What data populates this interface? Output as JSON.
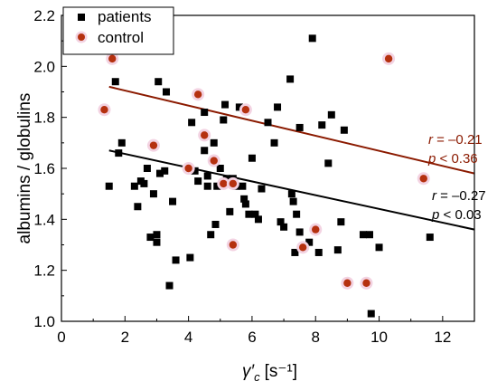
{
  "chart_data": {
    "type": "scatter",
    "title": "",
    "xlabel": "γ′",
    "xlabel_sub": "c",
    "xlabel_units": "[s⁻¹]",
    "ylabel": "albumins / globulins",
    "xlim": [
      0,
      13
    ],
    "ylim": [
      1.0,
      2.2
    ],
    "x_ticks": [
      "0",
      "2",
      "4",
      "6",
      "8",
      "10",
      "12"
    ],
    "y_ticks": [
      "1.0",
      "1.2",
      "1.4",
      "1.6",
      "1.8",
      "2.0",
      "2.2"
    ],
    "grid": false,
    "legend_position": "top-left",
    "series": [
      {
        "name": "patients",
        "marker": "square",
        "color": "#000000",
        "points": [
          [
            1.5,
            1.53
          ],
          [
            1.7,
            1.94
          ],
          [
            1.8,
            1.66
          ],
          [
            1.9,
            1.7
          ],
          [
            2.3,
            1.53
          ],
          [
            2.4,
            1.45
          ],
          [
            2.5,
            1.55
          ],
          [
            2.6,
            1.54
          ],
          [
            2.7,
            1.6
          ],
          [
            2.8,
            1.33
          ],
          [
            2.9,
            1.5
          ],
          [
            3.0,
            1.31
          ],
          [
            3.0,
            1.34
          ],
          [
            3.05,
            1.94
          ],
          [
            3.1,
            1.58
          ],
          [
            3.25,
            1.59
          ],
          [
            3.3,
            1.9
          ],
          [
            3.4,
            1.14
          ],
          [
            3.5,
            1.47
          ],
          [
            3.6,
            1.24
          ],
          [
            4.05,
            1.25
          ],
          [
            4.1,
            1.78
          ],
          [
            4.2,
            1.59
          ],
          [
            4.3,
            1.55
          ],
          [
            4.5,
            1.67
          ],
          [
            4.5,
            1.82
          ],
          [
            4.6,
            1.53
          ],
          [
            4.6,
            1.57
          ],
          [
            4.7,
            1.34
          ],
          [
            4.8,
            1.7
          ],
          [
            4.85,
            1.38
          ],
          [
            4.9,
            1.53
          ],
          [
            5.0,
            1.6
          ],
          [
            5.1,
            1.79
          ],
          [
            5.15,
            1.85
          ],
          [
            5.2,
            1.56
          ],
          [
            5.3,
            1.43
          ],
          [
            5.4,
            1.56
          ],
          [
            5.5,
            1.53
          ],
          [
            5.6,
            1.84
          ],
          [
            5.7,
            1.53
          ],
          [
            5.75,
            1.48
          ],
          [
            5.8,
            1.46
          ],
          [
            5.9,
            1.42
          ],
          [
            6.0,
            1.64
          ],
          [
            6.1,
            1.42
          ],
          [
            6.2,
            1.4
          ],
          [
            6.3,
            1.52
          ],
          [
            6.5,
            1.78
          ],
          [
            6.7,
            1.7
          ],
          [
            6.8,
            1.84
          ],
          [
            6.9,
            1.39
          ],
          [
            7.0,
            1.37
          ],
          [
            7.2,
            1.95
          ],
          [
            7.25,
            1.5
          ],
          [
            7.3,
            1.47
          ],
          [
            7.35,
            1.27
          ],
          [
            7.4,
            1.42
          ],
          [
            7.5,
            1.35
          ],
          [
            7.5,
            1.76
          ],
          [
            7.8,
            1.31
          ],
          [
            7.9,
            2.11
          ],
          [
            8.1,
            1.27
          ],
          [
            8.2,
            1.77
          ],
          [
            8.4,
            1.62
          ],
          [
            8.5,
            1.81
          ],
          [
            8.7,
            1.28
          ],
          [
            8.8,
            1.39
          ],
          [
            8.9,
            1.75
          ],
          [
            9.5,
            1.34
          ],
          [
            9.7,
            1.34
          ],
          [
            9.75,
            1.03
          ],
          [
            10.0,
            1.29
          ],
          [
            11.6,
            1.33
          ]
        ]
      },
      {
        "name": "control",
        "marker": "circle",
        "color": "#b5310f",
        "points": [
          [
            1.35,
            1.83
          ],
          [
            1.6,
            2.03
          ],
          [
            2.9,
            1.69
          ],
          [
            4.0,
            1.6
          ],
          [
            4.3,
            1.89
          ],
          [
            4.5,
            1.73
          ],
          [
            4.8,
            1.63
          ],
          [
            5.1,
            1.54
          ],
          [
            5.4,
            1.54
          ],
          [
            5.4,
            1.3
          ],
          [
            5.8,
            1.83
          ],
          [
            7.6,
            1.29
          ],
          [
            8.0,
            1.36
          ],
          [
            9.0,
            1.15
          ],
          [
            9.6,
            1.15
          ],
          [
            10.3,
            2.03
          ],
          [
            11.4,
            1.56
          ]
        ]
      }
    ],
    "fit_lines": [
      {
        "name": "patients",
        "color": "#000000",
        "x": [
          1.5,
          13
        ],
        "y": [
          1.67,
          1.36
        ]
      },
      {
        "name": "control",
        "color": "#8b1a00",
        "x": [
          1.5,
          13
        ],
        "y": [
          1.92,
          1.58
        ]
      }
    ],
    "annotations": [
      {
        "id": "control-r",
        "r_label": "r",
        "r_value": " = –0.21",
        "p_label": "p",
        "p_value": " < 0.36",
        "color": "#8b1a00"
      },
      {
        "id": "patients-r",
        "r_label": "r",
        "r_value": " = –0.27",
        "p_label": "p",
        "p_value": " < 0.03",
        "color": "#000000"
      }
    ]
  }
}
